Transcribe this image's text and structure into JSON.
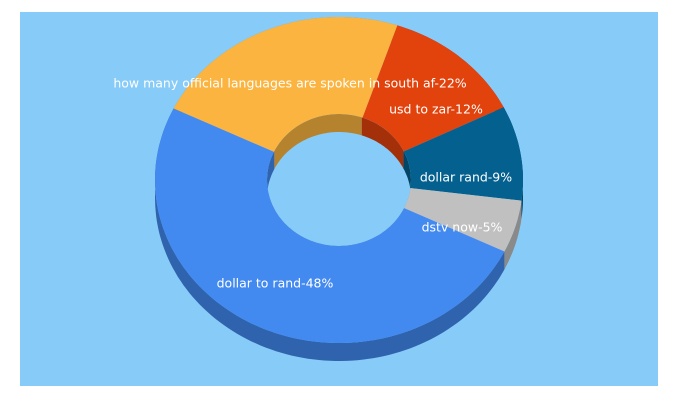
{
  "chart_data": {
    "type": "pie",
    "donut": true,
    "three_d": true,
    "values": [
      22,
      12,
      9,
      5,
      48
    ],
    "value_labels": [
      "how many official languages are spoken in south af-22%",
      "usd to zar-12%",
      "dollar rand-9%",
      "dstv now-5%",
      "dollar to rand-48%"
    ],
    "colors": [
      "#fbb440",
      "#e2420c",
      "#04608f",
      "#c0c0c0",
      "#4289f0"
    ]
  }
}
